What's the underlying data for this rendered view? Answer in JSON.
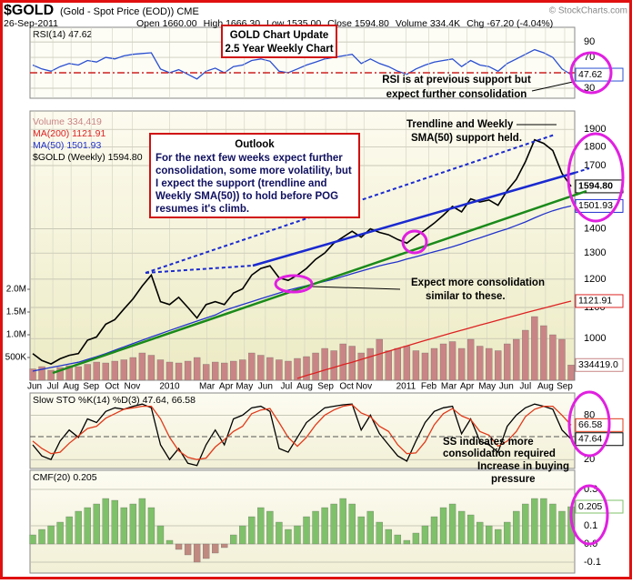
{
  "header": {
    "symbol": "$GOLD",
    "description": "(Gold - Spot Price (EOD)) CME",
    "date": "26-Sep-2011",
    "copyright": "© StockCharts.com",
    "quote": [
      "Open 1660.00",
      "High 1666.30",
      "Low 1535.00",
      "Close 1594.80",
      "Volume 334.4K",
      "Chg -67.20 (-4.04%)"
    ]
  },
  "annotations": {
    "title_box": [
      "GOLD Chart Update",
      "2.5 Year Weekly Chart"
    ],
    "rsi_note": [
      "RSI is at previous support but",
      "expect further consolidation"
    ],
    "trend_note": [
      "Trendline and Weekly",
      "SMA(50) support held."
    ],
    "outlook_title": "Outlook",
    "outlook": [
      "For the next few weeks expect further",
      "consolidation, some more volatility, but",
      "I expect the support (trendline and",
      "Weekly SMA(50)) to hold before POG",
      "resumes it's climb."
    ],
    "consolidation_note": [
      "Expect more consolidation",
      "similar to these."
    ],
    "sto_note": [
      "SS indicates more",
      "consolidation required"
    ],
    "cmf_note": [
      "Increase in buying",
      "pressure"
    ]
  },
  "chart_data": [
    {
      "type": "line",
      "title": "RSI(14) 47.62",
      "ylim": [
        17,
        109
      ],
      "yticks": [
        30,
        70,
        90
      ],
      "grid": true,
      "series": [
        {
          "color": "#2a4fd0",
          "end_label": "47.62",
          "values": [
            60,
            55,
            52,
            58,
            62,
            60,
            66,
            64,
            70,
            68,
            72,
            74,
            75,
            76,
            55,
            50,
            54,
            48,
            42,
            52,
            56,
            50,
            58,
            60,
            66,
            68,
            65,
            52,
            50,
            55,
            60,
            64,
            68,
            70,
            72,
            74,
            62,
            68,
            62,
            58,
            52,
            48,
            55,
            60,
            64,
            66,
            68,
            58,
            66,
            60,
            58,
            52,
            62,
            68,
            74,
            80,
            76,
            70,
            55,
            47.62
          ]
        }
      ]
    },
    {
      "type": "line",
      "log_scale": true,
      "ylim": [
        880,
        2010
      ],
      "yticks": [
        1000,
        1100,
        1200,
        1300,
        1400,
        1700,
        1800,
        1900
      ],
      "grid": true,
      "y2lim": [
        0,
        5920000
      ],
      "y2ticks": [
        {
          "value": 500000,
          "label": "500K"
        },
        {
          "value": 1000000,
          "label": "1.0M"
        },
        {
          "value": 1500000,
          "label": "1.5M"
        },
        {
          "value": 2000000,
          "label": "2.0M"
        }
      ],
      "xticks": [
        {
          "value": 0.2,
          "label": "Jun"
        },
        {
          "value": 2.2,
          "label": "Jul"
        },
        {
          "value": 4.2,
          "label": "Aug"
        },
        {
          "value": 6.4,
          "label": "Sep"
        },
        {
          "value": 8.7,
          "label": "Oct"
        },
        {
          "value": 10.9,
          "label": "Nov"
        },
        {
          "value": 15,
          "label": "2010"
        },
        {
          "value": 19.1,
          "label": "Mar"
        },
        {
          "value": 21.2,
          "label": "Apr"
        },
        {
          "value": 23.2,
          "label": "May"
        },
        {
          "value": 25.5,
          "label": "Jun"
        },
        {
          "value": 27.8,
          "label": "Jul"
        },
        {
          "value": 29.8,
          "label": "Aug"
        },
        {
          "value": 32.1,
          "label": "Sep"
        },
        {
          "value": 34.4,
          "label": "Oct"
        },
        {
          "value": 36.3,
          "label": "Nov"
        },
        {
          "value": 40.9,
          "label": "2011"
        },
        {
          "value": 43.4,
          "label": "Feb"
        },
        {
          "value": 45.6,
          "label": "Mar"
        },
        {
          "value": 47.6,
          "label": "Apr"
        },
        {
          "value": 49.8,
          "label": "May"
        },
        {
          "value": 51.9,
          "label": "Jun"
        },
        {
          "value": 54,
          "label": "Jul"
        },
        {
          "value": 56.2,
          "label": "Aug"
        },
        {
          "value": 58.3,
          "label": "Sep"
        }
      ],
      "series": [
        {
          "name": "Volume 334,419",
          "type": "bar",
          "axis": "y2",
          "color": "#c98585",
          "end_label": "334419.0",
          "values": [
            250000,
            300000,
            220000,
            280000,
            320000,
            300000,
            350000,
            400000,
            380000,
            420000,
            450000,
            500000,
            600000,
            550000,
            450000,
            400000,
            380000,
            420000,
            500000,
            350000,
            400000,
            380000,
            420000,
            450000,
            600000,
            550000,
            500000,
            450000,
            420000,
            480000,
            520000,
            600000,
            700000,
            650000,
            800000,
            750000,
            600000,
            700000,
            900000,
            650000,
            700000,
            750000,
            650000,
            600000,
            700000,
            800000,
            850000,
            700000,
            900000,
            750000,
            700000,
            650000,
            800000,
            900000,
            1100000,
            1400000,
            1200000,
            1000000,
            900000,
            334419
          ]
        },
        {
          "name": "MA(200) 1121.91",
          "color": "#dd2222",
          "end_label": "1121.91",
          "values": [
            null,
            null,
            null,
            null,
            null,
            null,
            null,
            null,
            null,
            null,
            null,
            null,
            null,
            null,
            null,
            null,
            null,
            null,
            null,
            null,
            null,
            null,
            null,
            null,
            null,
            null,
            null,
            null,
            null,
            885,
            893,
            900,
            908,
            915,
            923,
            930,
            938,
            946,
            954,
            962,
            970,
            978,
            986,
            994,
            1002,
            1010,
            1018,
            1026,
            1034,
            1042,
            1050,
            1058,
            1066,
            1074,
            1082,
            1090,
            1098,
            1106,
            1114,
            1121.91
          ]
        },
        {
          "name": "MA(50) 1501.93",
          "color": "#2233cc",
          "end_label": "1501.93",
          "values": [
            905,
            910,
            915,
            920,
            925,
            930,
            938,
            946,
            955,
            965,
            975,
            985,
            995,
            1005,
            1015,
            1025,
            1035,
            1045,
            1055,
            1065,
            1075,
            1090,
            1100,
            1110,
            1120,
            1130,
            1140,
            1150,
            1160,
            1168,
            1176,
            1184,
            1192,
            1200,
            1210,
            1220,
            1230,
            1240,
            1250,
            1258,
            1266,
            1276,
            1285,
            1295,
            1305,
            1315,
            1325,
            1337,
            1350,
            1362,
            1375,
            1388,
            1400,
            1415,
            1430,
            1448,
            1465,
            1480,
            1492,
            1501.93
          ]
        },
        {
          "name": "$GOLD (Weekly) 1594.80",
          "color": "#000000",
          "end_label": "1594.80",
          "values": [
            955,
            935,
            925,
            940,
            950,
            955,
            995,
            1005,
            1045,
            1060,
            1095,
            1130,
            1175,
            1215,
            1120,
            1110,
            1135,
            1100,
            1065,
            1110,
            1120,
            1110,
            1150,
            1165,
            1215,
            1240,
            1250,
            1205,
            1195,
            1215,
            1240,
            1275,
            1300,
            1340,
            1365,
            1390,
            1365,
            1400,
            1385,
            1375,
            1355,
            1340,
            1370,
            1395,
            1425,
            1460,
            1500,
            1475,
            1535,
            1520,
            1530,
            1505,
            1575,
            1630,
            1720,
            1840,
            1820,
            1780,
            1660,
            1594.8
          ]
        }
      ]
    },
    {
      "type": "line",
      "title": "Slow STO %K(14) %D(3) 47.64, 66.58",
      "ylim": [
        8,
        110
      ],
      "yticks": [
        20,
        80
      ],
      "grid": true,
      "series": [
        {
          "color": "#000000",
          "end_label": "47.64",
          "values": [
            40,
            25,
            20,
            45,
            60,
            50,
            75,
            70,
            85,
            90,
            88,
            92,
            95,
            90,
            40,
            20,
            35,
            15,
            12,
            40,
            60,
            40,
            75,
            80,
            90,
            92,
            85,
            35,
            30,
            50,
            70,
            80,
            90,
            92,
            94,
            95,
            60,
            80,
            55,
            40,
            25,
            18,
            45,
            70,
            85,
            90,
            92,
            55,
            75,
            45,
            40,
            30,
            65,
            80,
            90,
            95,
            92,
            88,
            60,
            47.64
          ]
        },
        {
          "color": "#e03a1a",
          "end_label": "66.58",
          "values": [
            45,
            35,
            28,
            30,
            42,
            52,
            62,
            65,
            76,
            82,
            88,
            90,
            92,
            92,
            75,
            50,
            32,
            23,
            20,
            22,
            37,
            47,
            58,
            65,
            82,
            87,
            89,
            70,
            50,
            38,
            50,
            67,
            80,
            87,
            92,
            94,
            83,
            78,
            65,
            58,
            40,
            28,
            29,
            44,
            67,
            82,
            89,
            79,
            74,
            58,
            53,
            38,
            45,
            58,
            78,
            88,
            92,
            92,
            80,
            66.58
          ]
        }
      ]
    },
    {
      "type": "bar",
      "title": "CMF(20) 0.205",
      "ylim": [
        -0.16,
        0.405
      ],
      "yticks": [
        -0.1,
        {
          "value": 0,
          "label": "0.0"
        },
        0.1,
        0.3
      ],
      "grid": true,
      "series": [
        {
          "color": "#7fc06a",
          "negative_color": "#c08a80",
          "end_label": "0.205",
          "values": [
            0.05,
            0.08,
            0.1,
            0.12,
            0.15,
            0.18,
            0.2,
            0.22,
            0.25,
            0.24,
            0.2,
            0.22,
            0.25,
            0.2,
            0.1,
            0.02,
            -0.03,
            -0.06,
            -0.1,
            -0.08,
            -0.05,
            -0.02,
            0.05,
            0.1,
            0.15,
            0.2,
            0.18,
            0.12,
            0.08,
            0.1,
            0.15,
            0.18,
            0.2,
            0.22,
            0.25,
            0.22,
            0.15,
            0.18,
            0.12,
            0.08,
            0.05,
            0.02,
            0.06,
            0.1,
            0.15,
            0.2,
            0.22,
            0.18,
            0.16,
            0.12,
            0.1,
            0.08,
            0.12,
            0.18,
            0.22,
            0.25,
            0.25,
            0.22,
            0.18,
            0.205
          ]
        }
      ]
    }
  ]
}
